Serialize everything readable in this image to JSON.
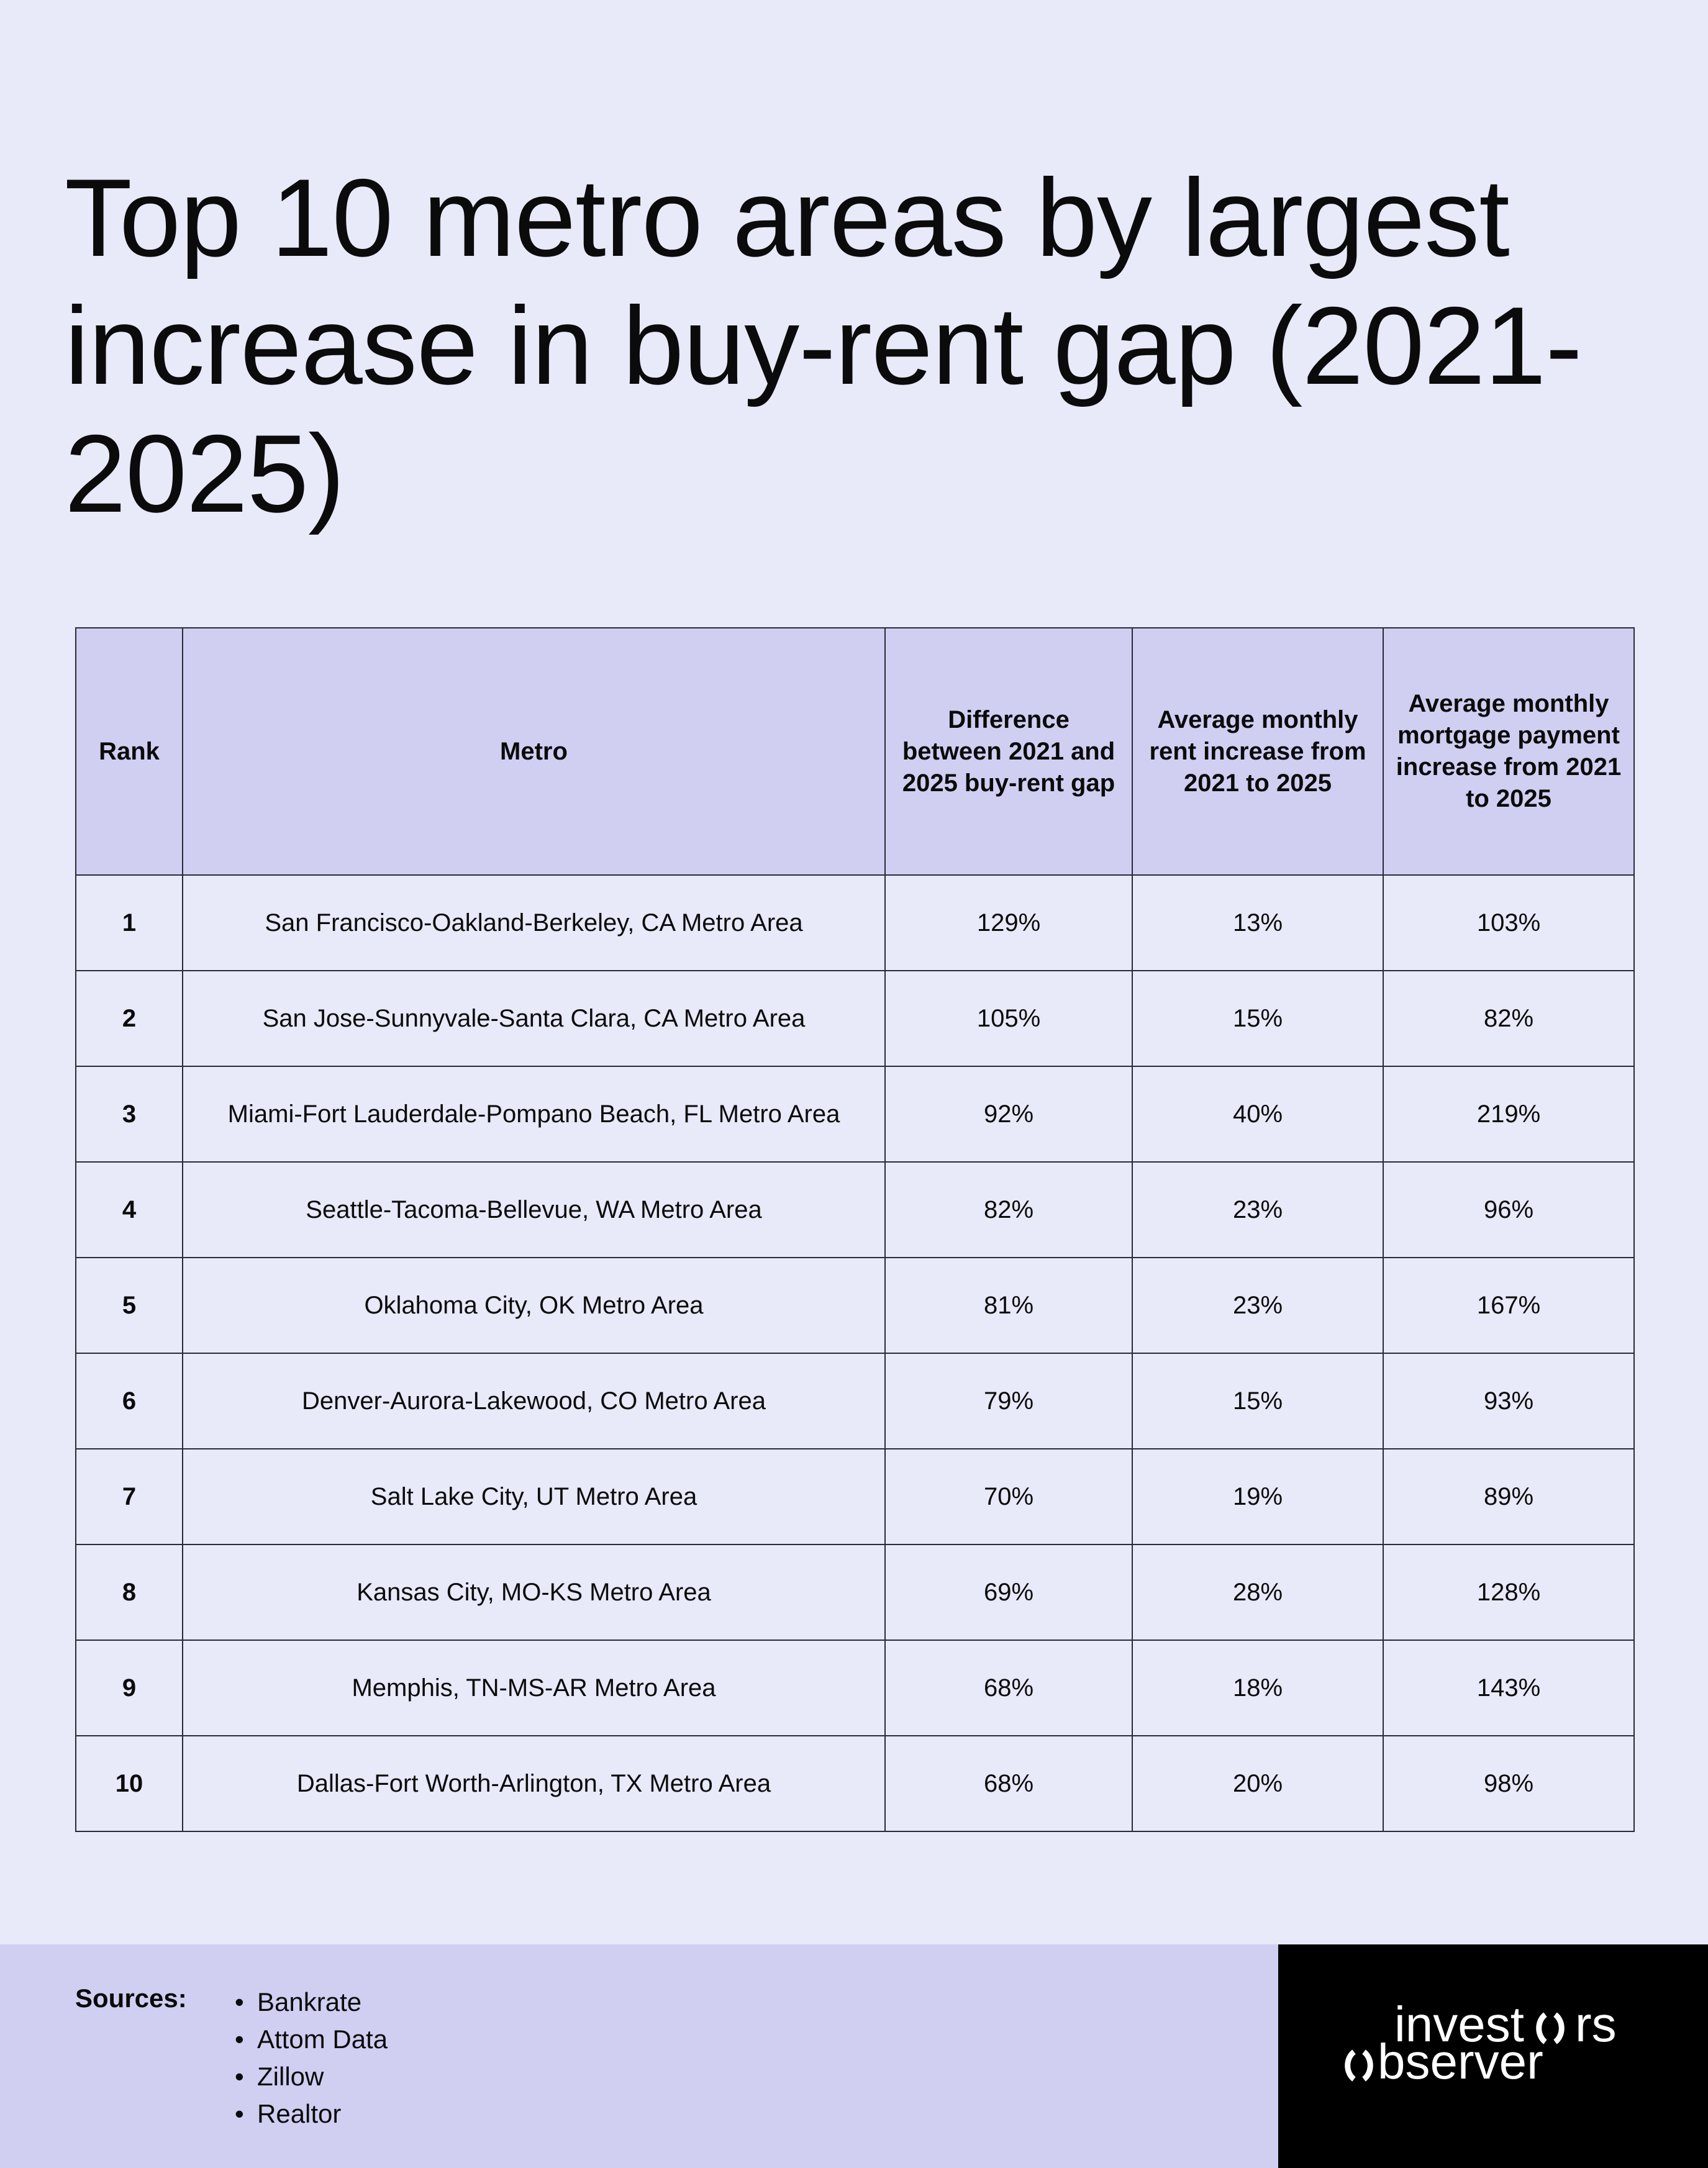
{
  "title": "Top 10 metro areas by largest increase in buy-rent gap (2021-2025)",
  "chart_data": {
    "type": "table",
    "title": "Top 10 metro areas by largest increase in buy-rent gap (2021-2025)",
    "columns": [
      "Rank",
      "Metro",
      "Difference between 2021 and 2025 buy-rent gap",
      "Average monthly rent increase from 2021 to 2025",
      "Average monthly mortgage payment increase from 2021 to 2025"
    ],
    "rows": [
      [
        "1",
        "San Francisco-Oakland-Berkeley, CA Metro Area",
        "129%",
        "13%",
        "103%"
      ],
      [
        "2",
        "San Jose-Sunnyvale-Santa Clara, CA Metro Area",
        "105%",
        "15%",
        "82%"
      ],
      [
        "3",
        "Miami-Fort Lauderdale-Pompano Beach, FL Metro Area",
        "92%",
        "40%",
        "219%"
      ],
      [
        "4",
        "Seattle-Tacoma-Bellevue, WA Metro Area",
        "82%",
        "23%",
        "96%"
      ],
      [
        "5",
        "Oklahoma City, OK Metro Area",
        "81%",
        "23%",
        "167%"
      ],
      [
        "6",
        "Denver-Aurora-Lakewood, CO Metro Area",
        "79%",
        "15%",
        "93%"
      ],
      [
        "7",
        "Salt Lake City, UT Metro Area",
        "70%",
        "19%",
        "89%"
      ],
      [
        "8",
        "Kansas City, MO-KS Metro Area",
        "69%",
        "28%",
        "128%"
      ],
      [
        "9",
        "Memphis, TN-MS-AR Metro Area",
        "68%",
        "18%",
        "143%"
      ],
      [
        "10",
        "Dallas-Fort Worth-Arlington, TX Metro Area",
        "68%",
        "20%",
        "98%"
      ]
    ]
  },
  "footer": {
    "sources_label": "Sources:",
    "bullet": "•",
    "sources": [
      "Bankrate",
      "Attom Data",
      "Zillow",
      "Realtor"
    ],
    "logo_line1": "investors",
    "logo_line2": "observer"
  },
  "colors": {
    "background": "#e8e9f9",
    "header_fill": "#d0cff2",
    "footer_fill": "#d0cff2",
    "logo_background": "#000000",
    "logo_text": "#ffffff",
    "text": "#0b0b0b",
    "grid": "#2a2a35"
  }
}
